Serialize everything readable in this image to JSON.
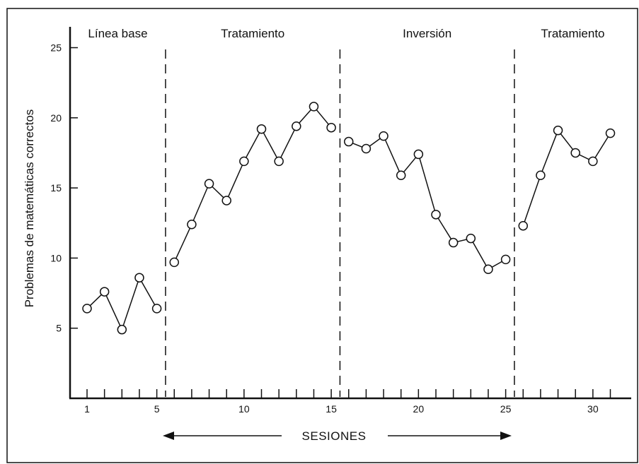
{
  "chart_data": {
    "type": "line",
    "title": "",
    "xlabel": "SESIONES",
    "ylabel": "Problemas de matemáticas correctos",
    "xlim": [
      0,
      32
    ],
    "ylim": [
      0,
      25
    ],
    "y_ticks": [
      5,
      10,
      15,
      20,
      25
    ],
    "x_tick_labels": [
      1,
      5,
      10,
      15,
      20,
      25,
      30
    ],
    "grid": false,
    "phases": [
      {
        "label": "Línea base",
        "sessions": [
          1,
          5
        ]
      },
      {
        "label": "Tratamiento",
        "sessions": [
          6,
          15
        ]
      },
      {
        "label": "Inversión",
        "sessions": [
          16,
          25
        ]
      },
      {
        "label": "Tratamiento",
        "sessions": [
          26,
          31
        ]
      }
    ],
    "phase_boundaries": [
      5.5,
      15.5,
      25.5
    ],
    "series": [
      {
        "x": [
          1,
          2,
          3,
          4,
          5,
          6,
          7,
          8,
          9,
          10,
          11,
          12,
          13,
          14,
          15,
          16,
          17,
          18,
          19,
          20,
          21,
          22,
          23,
          24,
          25,
          26,
          27,
          28,
          29,
          30,
          31
        ],
        "values": [
          6.4,
          7.6,
          4.9,
          8.6,
          6.4,
          9.7,
          12.4,
          15.3,
          14.1,
          16.9,
          19.2,
          16.9,
          19.4,
          20.8,
          19.3,
          18.3,
          17.8,
          18.7,
          15.9,
          17.4,
          13.1,
          11.1,
          11.4,
          9.2,
          9.9,
          12.3,
          15.9,
          19.1,
          17.5,
          16.9,
          18.9
        ]
      }
    ]
  }
}
